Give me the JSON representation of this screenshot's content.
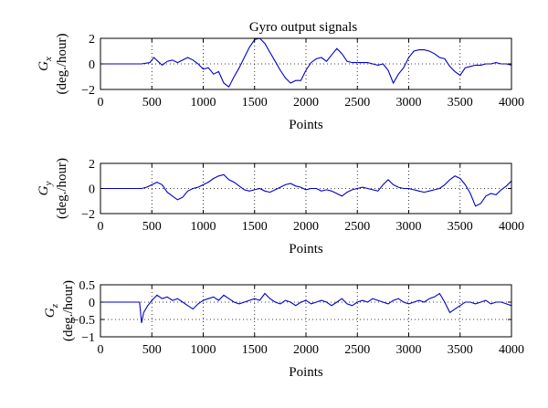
{
  "chart_data": [
    {
      "type": "line",
      "title": "Gyro output signals",
      "xlabel": "Points",
      "ylabel_main": "G",
      "ylabel_sub": "x",
      "ylabel_unit": "(deg./hour)",
      "xlim": [
        0,
        4000
      ],
      "ylim": [
        -2,
        2
      ],
      "xticks": [
        0,
        500,
        1000,
        1500,
        2000,
        2500,
        3000,
        3500,
        4000
      ],
      "yticks": [
        -2,
        0,
        2
      ],
      "xtick_labels": [
        "0",
        "500",
        "1000",
        "1500",
        "2000",
        "2500",
        "3000",
        "3500",
        "4000"
      ],
      "ytick_labels": [
        "−2",
        "0",
        "2"
      ],
      "grid": "dotted",
      "line_color": "#0000cc",
      "series": [
        {
          "x": [
            0,
            100,
            200,
            300,
            400,
            480,
            520,
            560,
            600,
            650,
            700,
            750,
            800,
            850,
            900,
            950,
            1000,
            1050,
            1100,
            1150,
            1200,
            1250,
            1300,
            1350,
            1400,
            1450,
            1500,
            1550,
            1600,
            1650,
            1700,
            1750,
            1800,
            1850,
            1900,
            1950,
            2000,
            2050,
            2100,
            2150,
            2200,
            2250,
            2300,
            2350,
            2400,
            2450,
            2500,
            2550,
            2600,
            2650,
            2700,
            2750,
            2800,
            2850,
            2900,
            2950,
            3000,
            3050,
            3100,
            3150,
            3200,
            3250,
            3300,
            3350,
            3400,
            3450,
            3500,
            3550,
            3600,
            3650,
            3700,
            3750,
            3800,
            3850,
            3900,
            3950,
            4000
          ],
          "y": [
            0,
            0,
            0,
            0,
            0,
            0.1,
            0.5,
            0.2,
            -0.1,
            0.2,
            0.3,
            0.1,
            0.3,
            0.5,
            0.3,
            0,
            -0.4,
            -0.3,
            -0.8,
            -0.6,
            -1.5,
            -1.8,
            -1,
            -0.3,
            0.5,
            1.3,
            1.9,
            2,
            1.6,
            0.9,
            0.2,
            -0.5,
            -1.1,
            -1.5,
            -1.3,
            -1.3,
            -0.5,
            0.1,
            0.4,
            0.5,
            0.2,
            0.7,
            1.2,
            0.8,
            0.2,
            0.1,
            0.1,
            0.1,
            0.1,
            0,
            -0.1,
            0,
            -0.5,
            -1.5,
            -0.8,
            -0.3,
            0.5,
            1,
            1.1,
            1.1,
            1,
            0.8,
            0.5,
            0.4,
            -0.2,
            -0.6,
            -0.9,
            -0.3,
            -0.2,
            -0.1,
            -0.1,
            0,
            0,
            0.1,
            0,
            0,
            -0.1
          ]
        }
      ]
    },
    {
      "type": "line",
      "xlabel": "Points",
      "ylabel_main": "G",
      "ylabel_sub": "y",
      "ylabel_unit": "(deg./hour)",
      "xlim": [
        0,
        4000
      ],
      "ylim": [
        -2,
        2
      ],
      "xticks": [
        0,
        500,
        1000,
        1500,
        2000,
        2500,
        3000,
        3500,
        4000
      ],
      "yticks": [
        -2,
        0,
        2
      ],
      "xtick_labels": [
        "0",
        "500",
        "1000",
        "1500",
        "2000",
        "2500",
        "3000",
        "3500",
        "4000"
      ],
      "ytick_labels": [
        "−2",
        "0",
        "2"
      ],
      "grid": "dotted",
      "line_color": "#0000cc",
      "series": [
        {
          "x": [
            0,
            100,
            200,
            300,
            400,
            450,
            500,
            550,
            600,
            650,
            700,
            750,
            800,
            850,
            900,
            950,
            1000,
            1050,
            1100,
            1150,
            1200,
            1250,
            1300,
            1350,
            1400,
            1450,
            1500,
            1550,
            1600,
            1650,
            1700,
            1750,
            1800,
            1850,
            1900,
            1950,
            2000,
            2050,
            2100,
            2150,
            2200,
            2250,
            2300,
            2350,
            2400,
            2450,
            2500,
            2550,
            2600,
            2650,
            2700,
            2750,
            2800,
            2850,
            2900,
            2950,
            3000,
            3050,
            3100,
            3150,
            3200,
            3250,
            3300,
            3350,
            3400,
            3450,
            3500,
            3550,
            3600,
            3650,
            3700,
            3750,
            3800,
            3850,
            3900,
            3950,
            4000
          ],
          "y": [
            0,
            0,
            0,
            0,
            0,
            0.1,
            0.3,
            0.5,
            0.3,
            -0.3,
            -0.6,
            -0.9,
            -0.7,
            -0.2,
            0,
            0.1,
            0.3,
            0.5,
            0.8,
            1,
            1.1,
            0.7,
            0.5,
            0.2,
            -0.1,
            -0.2,
            -0.1,
            0,
            -0.2,
            -0.3,
            -0.1,
            0.1,
            0.3,
            0.4,
            0.2,
            0.1,
            -0.1,
            0,
            0,
            -0.2,
            -0.1,
            -0.2,
            -0.4,
            -0.6,
            -0.3,
            -0.1,
            0,
            0.1,
            0,
            -0.1,
            -0.2,
            0.3,
            0.7,
            0.3,
            0.1,
            0,
            0,
            -0.1,
            -0.2,
            -0.3,
            -0.2,
            -0.1,
            0,
            0.3,
            0.7,
            1,
            0.8,
            0.3,
            -0.4,
            -1.4,
            -1.2,
            -0.6,
            -0.4,
            -0.5,
            -0.1,
            0.2,
            0.6
          ]
        }
      ]
    },
    {
      "type": "line",
      "xlabel": "Points",
      "ylabel_main": "G",
      "ylabel_sub": "z",
      "ylabel_unit": "(deg./hour)",
      "xlim": [
        0,
        4000
      ],
      "ylim": [
        -1,
        0.5
      ],
      "xticks": [
        0,
        500,
        1000,
        1500,
        2000,
        2500,
        3000,
        3500,
        4000
      ],
      "yticks": [
        -1,
        -0.5,
        0,
        0.5
      ],
      "xtick_labels": [
        "0",
        "500",
        "1000",
        "1500",
        "2000",
        "2500",
        "3000",
        "3500",
        "4000"
      ],
      "ytick_labels": [
        "−1",
        "−0.5",
        "0",
        "0.5"
      ],
      "grid": "dotted",
      "line_color": "#0000cc",
      "series": [
        {
          "x": [
            0,
            100,
            200,
            300,
            380,
            400,
            420,
            440,
            460,
            500,
            550,
            600,
            650,
            700,
            750,
            800,
            850,
            900,
            950,
            1000,
            1050,
            1100,
            1150,
            1200,
            1250,
            1300,
            1350,
            1400,
            1450,
            1500,
            1550,
            1600,
            1650,
            1700,
            1750,
            1800,
            1850,
            1900,
            1950,
            2000,
            2050,
            2100,
            2150,
            2200,
            2250,
            2300,
            2350,
            2400,
            2450,
            2500,
            2550,
            2600,
            2650,
            2700,
            2750,
            2800,
            2850,
            2900,
            2950,
            3000,
            3050,
            3100,
            3150,
            3200,
            3250,
            3300,
            3350,
            3400,
            3450,
            3500,
            3550,
            3600,
            3650,
            3700,
            3750,
            3800,
            3850,
            3900,
            3950,
            4000
          ],
          "y": [
            0,
            0,
            0,
            0,
            0,
            -0.6,
            -0.3,
            -0.2,
            -0.1,
            0.05,
            0.2,
            0.1,
            0.15,
            0.05,
            0.1,
            0,
            -0.1,
            -0.2,
            -0.05,
            0.05,
            0.1,
            0.15,
            0.05,
            0.2,
            0.1,
            0,
            -0.05,
            0,
            0.05,
            0.1,
            0.05,
            0.25,
            0.1,
            0,
            -0.05,
            0.05,
            0,
            -0.1,
            0,
            0.05,
            -0.05,
            0,
            0.05,
            0,
            -0.1,
            0,
            0.1,
            -0.05,
            -0.1,
            0,
            0.05,
            0,
            0.1,
            0.05,
            0,
            -0.05,
            0.05,
            0.1,
            0,
            -0.05,
            0,
            0.05,
            0,
            0.1,
            0.15,
            0.25,
            0,
            -0.3,
            -0.2,
            -0.1,
            0,
            0,
            -0.05,
            0,
            0.05,
            -0.05,
            0,
            0,
            -0.05,
            -0.1
          ]
        }
      ]
    }
  ]
}
